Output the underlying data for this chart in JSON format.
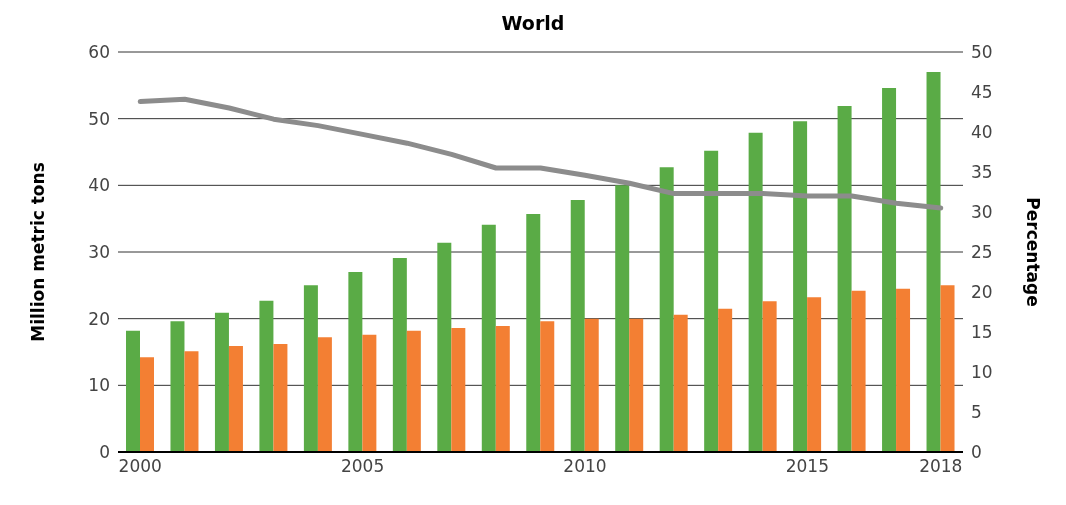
{
  "chart_data": {
    "type": "bar",
    "title": "World",
    "ylabel": "Million metric tons",
    "y2label": "Percentage",
    "categories": [
      "2000",
      null,
      null,
      null,
      null,
      "2005",
      null,
      null,
      null,
      null,
      "2010",
      null,
      null,
      null,
      null,
      "2015",
      null,
      null,
      "2018"
    ],
    "series": [
      {
        "color": "#5aab46",
        "values": [
          18.2,
          19.6,
          20.9,
          22.7,
          25.0,
          27.0,
          29.1,
          31.4,
          34.1,
          35.7,
          37.8,
          40.0,
          42.7,
          45.2,
          47.9,
          49.6,
          51.9,
          54.6,
          57.0
        ]
      },
      {
        "color": "#f37f33",
        "values": [
          14.2,
          15.1,
          15.9,
          16.2,
          17.2,
          17.6,
          18.2,
          18.6,
          18.9,
          19.6,
          20.0,
          20.0,
          20.6,
          21.5,
          22.6,
          23.2,
          24.2,
          24.5,
          25.0
        ]
      },
      {
        "type": "line",
        "axis": "y2",
        "color": "#8c8c8c",
        "values": [
          43.8,
          44.1,
          43.0,
          41.6,
          40.8,
          39.7,
          38.6,
          37.2,
          35.5,
          35.5,
          34.6,
          33.6,
          32.3,
          32.3,
          32.3,
          32.0,
          32.0,
          31.1,
          30.5
        ]
      }
    ],
    "ylim": [
      0,
      60
    ],
    "yticks": [
      0,
      10,
      20,
      30,
      40,
      50,
      60
    ],
    "y2lim": [
      0,
      50
    ],
    "y2ticks": [
      0,
      5,
      10,
      15,
      20,
      25,
      30,
      35,
      40,
      45,
      50
    ],
    "grid": "y",
    "marker": "none",
    "line_style": "solid"
  }
}
